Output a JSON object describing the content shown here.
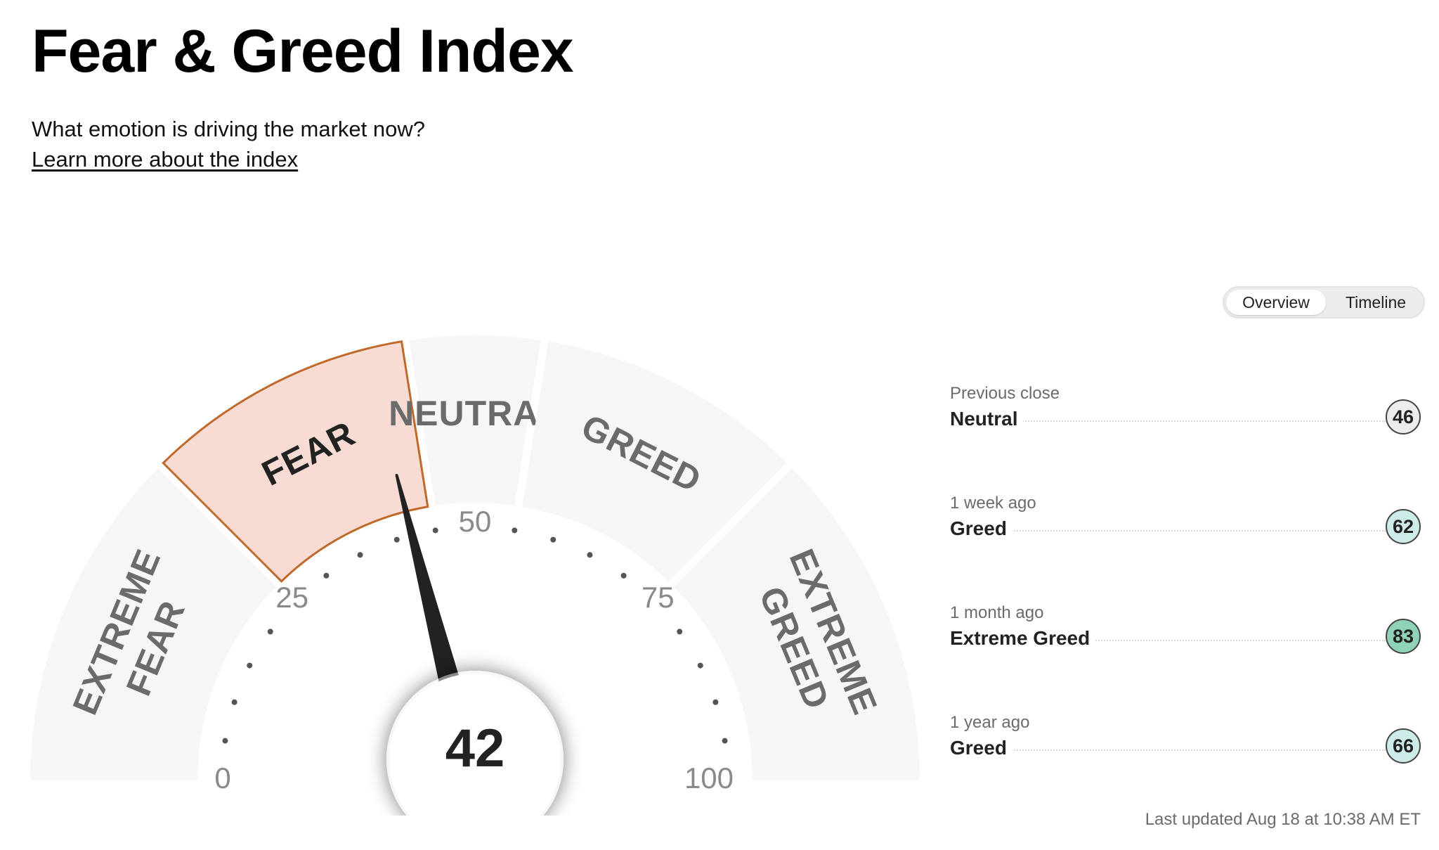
{
  "header": {
    "title": "Fear & Greed Index",
    "subtitle": "What emotion is driving the market now?",
    "learn_link": "Learn more about the index"
  },
  "gauge": {
    "value": 42,
    "value_text": "42",
    "current_rating": "Fear",
    "segments": [
      {
        "lines": [
          "EXTREME",
          "FEAR"
        ]
      },
      {
        "lines": [
          "FEAR"
        ]
      },
      {
        "lines": [
          "NEUTRAL"
        ]
      },
      {
        "lines": [
          "GREED"
        ]
      },
      {
        "lines": [
          "EXTREME",
          "GREED"
        ]
      }
    ],
    "scale_labels": [
      "0",
      "25",
      "50",
      "75",
      "100"
    ],
    "colors": {
      "active_fill": "#f8dcd3",
      "active_stroke": "#c0692a",
      "inactive_fill": "#f6f6f6",
      "needle": "#222222"
    }
  },
  "view_toggle": {
    "overview_label": "Overview",
    "timeline_label": "Timeline",
    "selected": "Overview"
  },
  "history": [
    {
      "label": "Previous close",
      "rating": "Neutral",
      "value": "46",
      "color": "#ececec"
    },
    {
      "label": "1 week ago",
      "rating": "Greed",
      "value": "62",
      "color": "#cdebe8"
    },
    {
      "label": "1 month ago",
      "rating": "Extreme Greed",
      "value": "83",
      "color": "#8fd3b6"
    },
    {
      "label": "1 year ago",
      "rating": "Greed",
      "value": "66",
      "color": "#cdebe8"
    }
  ],
  "last_updated": "Last updated Aug 18 at 10:38 AM ET"
}
